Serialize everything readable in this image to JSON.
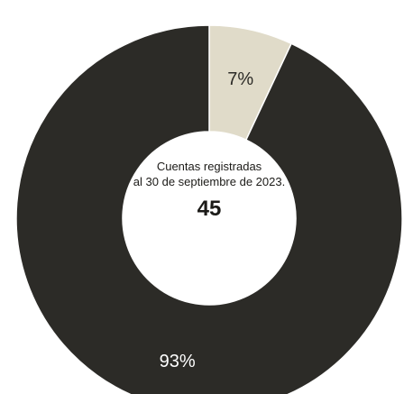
{
  "chart_data": {
    "type": "pie",
    "variant": "donut",
    "center": {
      "caption_line1": "Cuentas registradas",
      "caption_line2": "al 30 de septiembre de 2023.",
      "value": "45"
    },
    "slices": [
      {
        "label": "7%",
        "value": 7,
        "color": "#e0dbc9",
        "label_color": "#2c2b27"
      },
      {
        "label": "93%",
        "value": 93,
        "color": "#2c2b27",
        "label_color": "#ffffff"
      }
    ],
    "legend": "none"
  }
}
